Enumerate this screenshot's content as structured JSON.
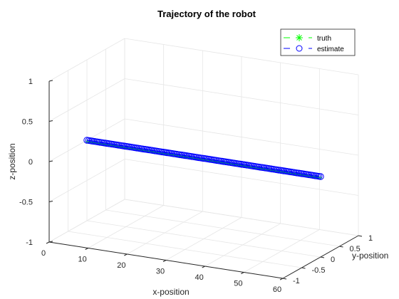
{
  "chart_data": {
    "type": "line",
    "projection": "3d",
    "title": "Trajectory of the robot",
    "xlabel": "x-position",
    "ylabel": "y-position",
    "zlabel": "z-position",
    "xlim": [
      0,
      60
    ],
    "ylim": [
      -1,
      1
    ],
    "zlim": [
      -1,
      1
    ],
    "xticks": [
      0,
      10,
      20,
      30,
      40,
      50,
      60
    ],
    "yticks": [
      -1,
      -0.5,
      0,
      0.5,
      1
    ],
    "zticks": [
      -1,
      -0.5,
      0,
      0.5,
      1
    ],
    "grid": true,
    "box": false,
    "legend_location": "top-right",
    "series": [
      {
        "name": "truth",
        "style": "-*",
        "color": "#00ff00",
        "marker": "asterisk",
        "x": [
          0,
          60
        ],
        "y": [
          0,
          0
        ],
        "z": [
          0,
          0
        ]
      },
      {
        "name": "estimate",
        "style": "--o",
        "color": "#0000ff",
        "marker": "circle",
        "x": [
          0,
          60
        ],
        "y": [
          0,
          0
        ],
        "z": [
          0,
          0
        ]
      }
    ],
    "legend_entries": [
      "truth",
      "estimate"
    ]
  }
}
